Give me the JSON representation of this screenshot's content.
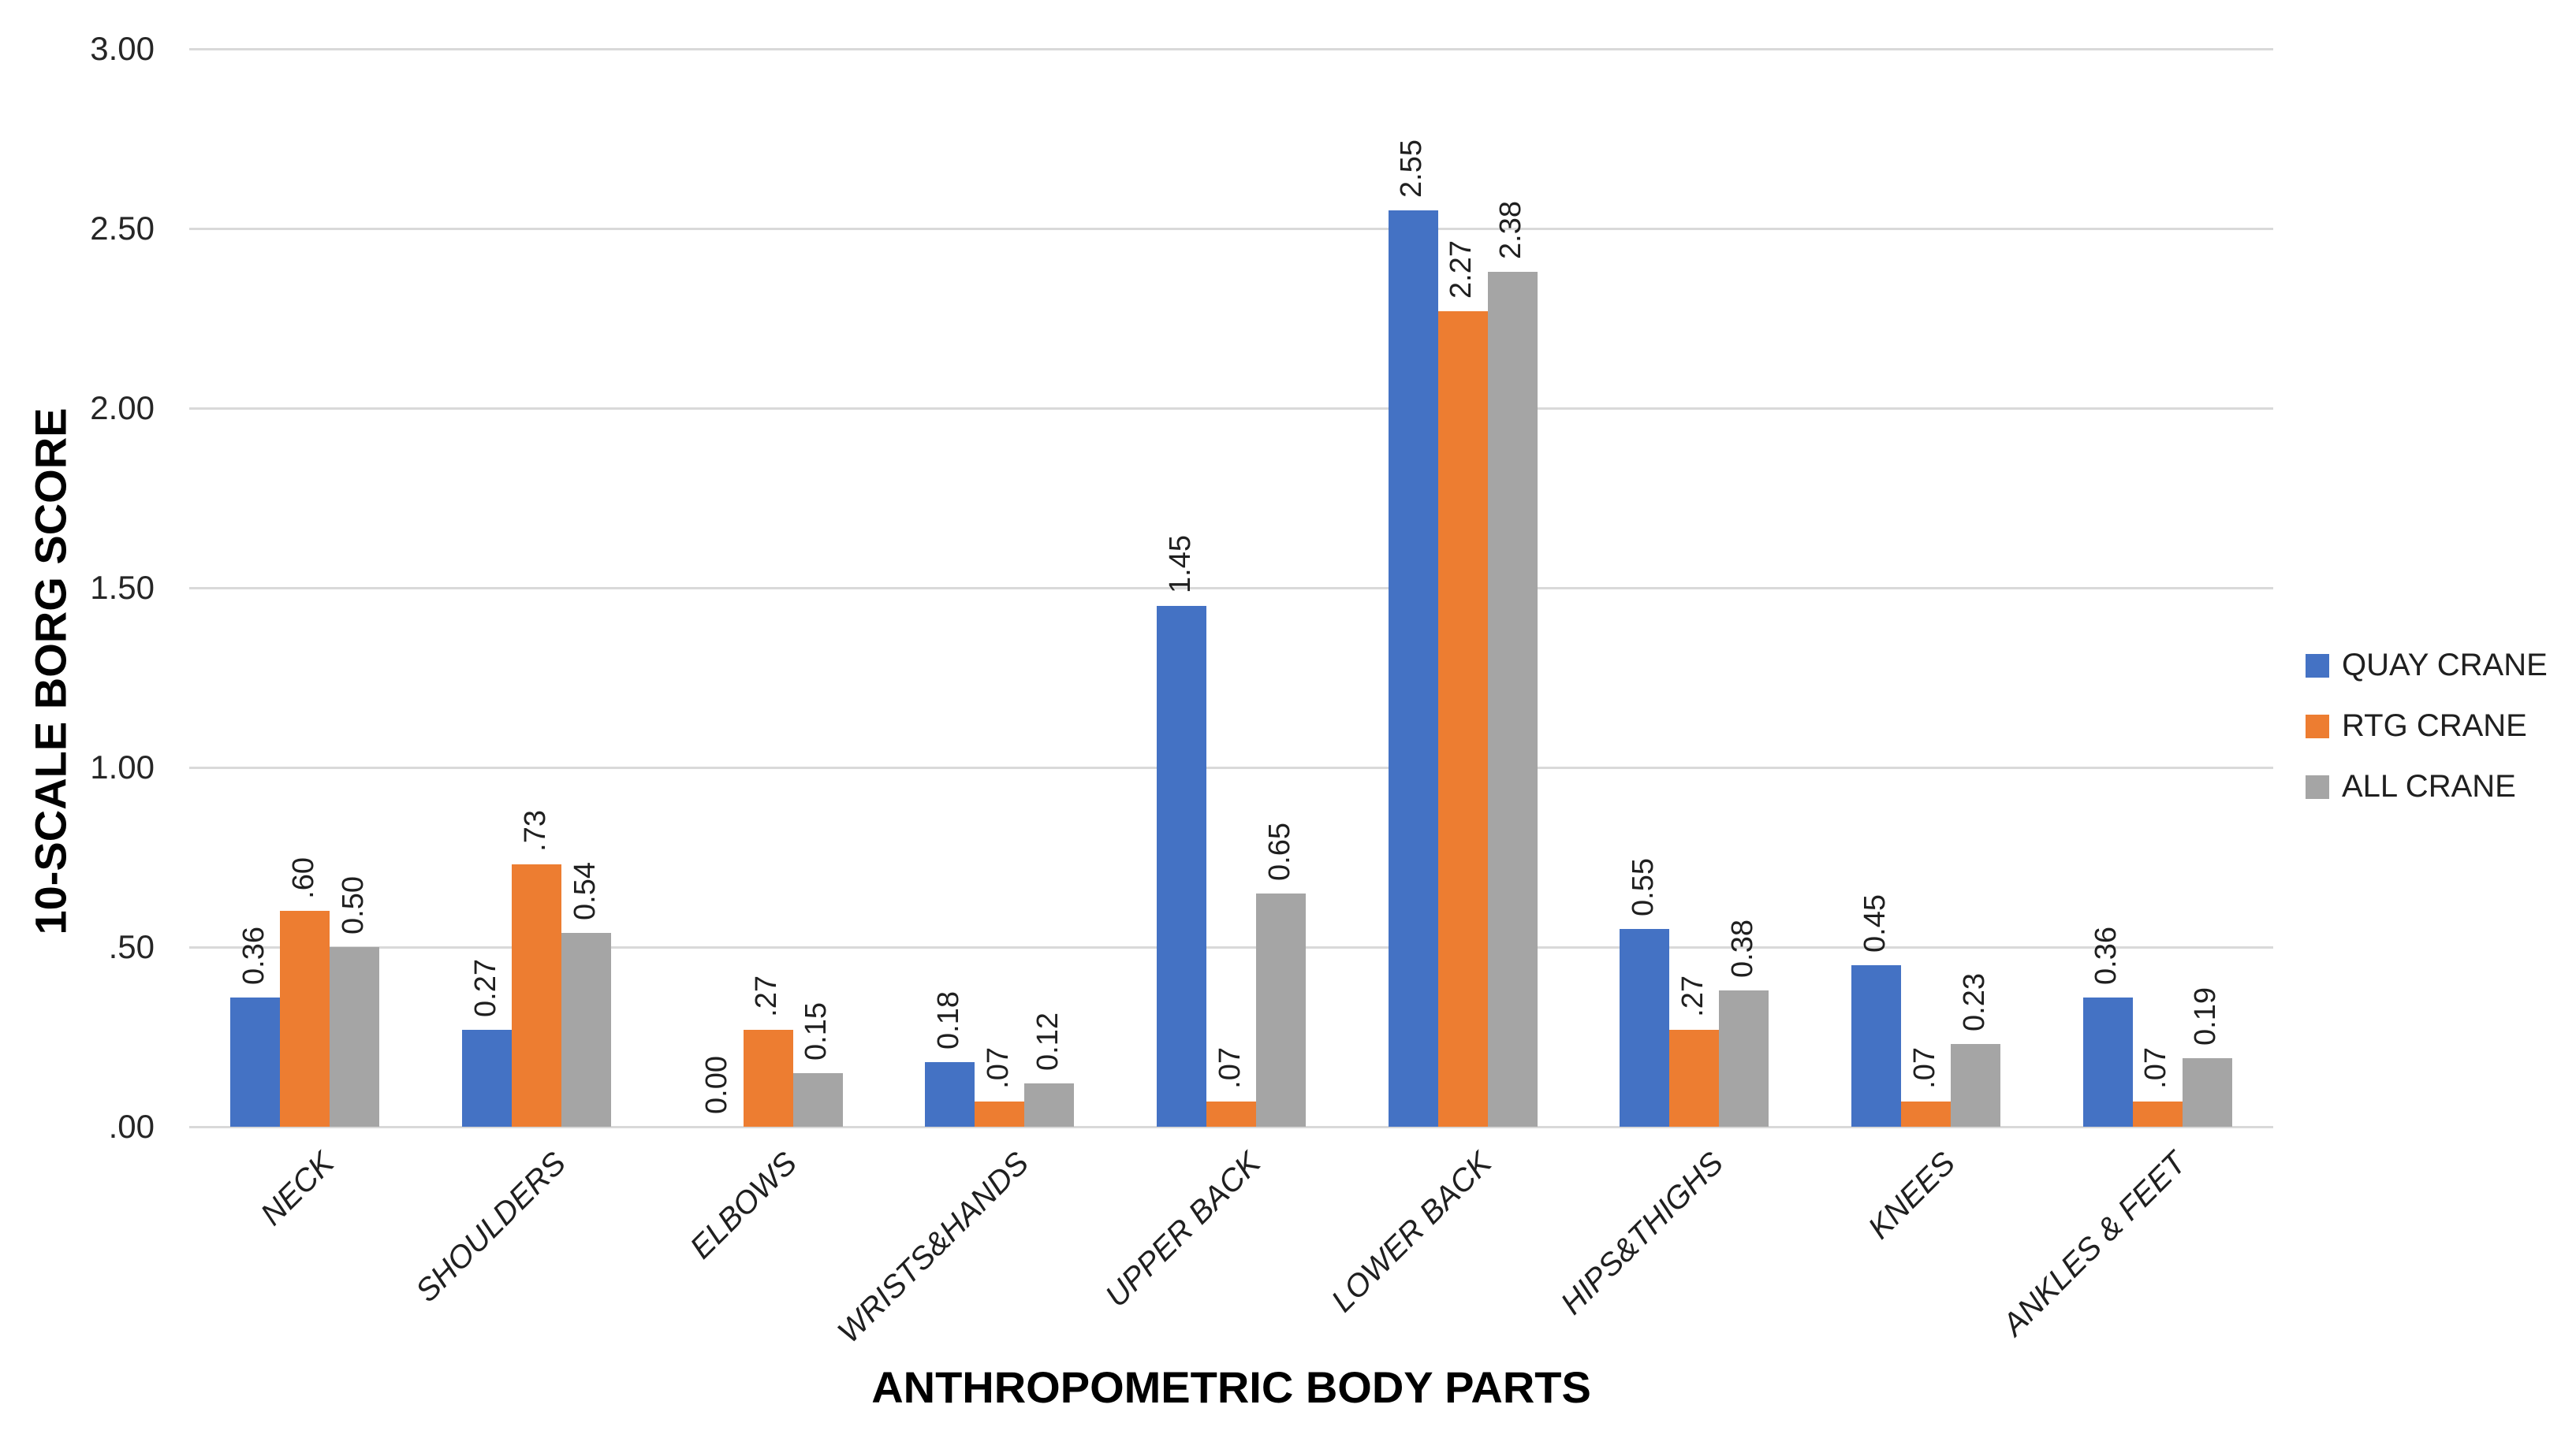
{
  "chart_data": {
    "type": "bar",
    "title": "",
    "xlabel": "ANTHROPOMETRIC BODY PARTS",
    "ylabel": "10-SCALE BORG SCORE",
    "categories": [
      "NECK",
      "SHOULDERS",
      "ELBOWS",
      "WRISTS&HANDS",
      "UPPER BACK",
      "LOWER BACK",
      "HIPS&THIGHS",
      "KNEES",
      "ANKLES & FEET"
    ],
    "series": [
      {
        "name": "QUAY CRANE",
        "color": "#4472C4",
        "values": [
          0.36,
          0.27,
          0.0,
          0.18,
          1.45,
          2.55,
          0.55,
          0.45,
          0.36
        ],
        "labels": [
          "0.36",
          "0.27",
          "0.00",
          "0.18",
          "1.45",
          "2.55",
          "0.55",
          "0.45",
          "0.36"
        ]
      },
      {
        "name": "RTG CRANE",
        "color": "#ED7D31",
        "values": [
          0.6,
          0.73,
          0.27,
          0.07,
          0.07,
          2.27,
          0.27,
          0.07,
          0.07
        ],
        "labels": [
          ".60",
          ".73",
          ".27",
          ".07",
          ".07",
          "2.27",
          ".27",
          ".07",
          ".07"
        ]
      },
      {
        "name": "ALL CRANE",
        "color": "#A5A5A5",
        "values": [
          0.5,
          0.54,
          0.15,
          0.12,
          0.65,
          2.38,
          0.38,
          0.23,
          0.19
        ],
        "labels": [
          "0.50",
          "0.54",
          "0.15",
          "0.12",
          "0.65",
          "2.38",
          "0.38",
          "0.23",
          "0.19"
        ]
      }
    ],
    "y_ticks": [
      {
        "value": 3.0,
        "label": "3.00"
      },
      {
        "value": 2.5,
        "label": "2.50"
      },
      {
        "value": 2.0,
        "label": "2.00"
      },
      {
        "value": 1.5,
        "label": "1.50"
      },
      {
        "value": 1.0,
        "label": "1.00"
      },
      {
        "value": 0.5,
        "label": ".50"
      },
      {
        "value": 0.0,
        "label": ".00"
      }
    ],
    "ylim": [
      0,
      3
    ],
    "grid": true,
    "grid_color": "#D9D9D9",
    "legend_position": "right",
    "data_label_rotation": "vertical"
  }
}
